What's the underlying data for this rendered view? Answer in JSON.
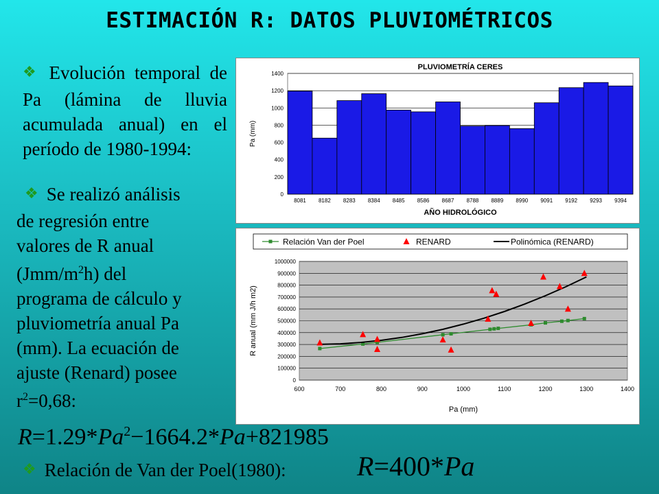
{
  "title": "ESTIMACIÓN R: DATOS PLUVIOMÉTRICOS",
  "bullet1": {
    "text": "Evolución temporal de Pa (lámina de lluvia acumulada anual) en el período de 1980-1994:"
  },
  "bullet2": {
    "line1": "Se realizó análisis",
    "line2": "de regresión entre",
    "line3": "valores de R anual",
    "line4a": "(Jmm/m",
    "line4sup": "2",
    "line4b": "h)  del",
    "line5": "programa de cálculo y",
    "line6": "pluviometría anual Pa",
    "line7": "(mm).  La ecuación de",
    "line8": "ajuste (Renard) posee",
    "line9a": "r",
    "line9sup": "2",
    "line9b": "=0,68:"
  },
  "equation_renard": {
    "lhs": "R",
    "eq": "=",
    "c1": "1.29",
    "op1": "*",
    "v1": "Pa",
    "exp": "2",
    "minus": "−",
    "c2": "1664.2",
    "op2": "*",
    "v2": "Pa",
    "plus": "+",
    "c3": "821985"
  },
  "bullet3": {
    "text": "Relación de Van der Poel(1980):"
  },
  "equation_vdp": {
    "lhs": "R",
    "eq": "=",
    "c": "400",
    "op": "*",
    "v": "Pa"
  },
  "colors": {
    "bar": "#1a1ae6",
    "vdp": "#2e8b2e",
    "renard": "#ff0000",
    "poly": "#000000",
    "plot_bg": "#c0c0c0",
    "diamond": "#1f9a1f"
  },
  "chart_data": [
    {
      "type": "bar",
      "title": "PLUVIOMETRÍA CERES",
      "xlabel": "AÑO HIDROLÓGICO",
      "ylabel": "Pa (mm)",
      "ylim": [
        0,
        1400
      ],
      "yticks": [
        0,
        200,
        400,
        600,
        800,
        1000,
        1200,
        1400
      ],
      "grid": true,
      "categories": [
        "8081",
        "8182",
        "8283",
        "8384",
        "8485",
        "8586",
        "8687",
        "8788",
        "8889",
        "8990",
        "9091",
        "9192",
        "9293",
        "9394"
      ],
      "values": [
        1195,
        650,
        1085,
        1165,
        975,
        955,
        1070,
        790,
        795,
        760,
        1060,
        1235,
        1295,
        1255
      ]
    },
    {
      "type": "scatter",
      "xlabel": "Pa (mm)",
      "ylabel": "R anual (mm J/h m2)",
      "xlim": [
        600,
        1400
      ],
      "ylim": [
        0,
        1000000
      ],
      "xticks": [
        600,
        700,
        800,
        900,
        1000,
        1100,
        1200,
        1300,
        1400
      ],
      "yticks": [
        0,
        100000,
        200000,
        300000,
        400000,
        500000,
        600000,
        700000,
        800000,
        900000,
        1000000
      ],
      "grid": true,
      "legend": "top",
      "series": [
        {
          "name": "Relación Van der Poel",
          "marker": "square",
          "x": [
            650,
            755,
            790,
            950,
            970,
            1065,
            1075,
            1085,
            1165,
            1200,
            1240,
            1255,
            1295
          ],
          "y": [
            266000,
            304000,
            318000,
            382000,
            390000,
            428000,
            432000,
            436000,
            466000,
            482000,
            496000,
            502000,
            518000
          ]
        },
        {
          "name": "RENARD",
          "marker": "triangle",
          "x": [
            650,
            755,
            790,
            790,
            950,
            970,
            1060,
            1070,
            1080,
            1165,
            1195,
            1235,
            1255,
            1295
          ],
          "y": [
            315000,
            385000,
            345000,
            260000,
            340000,
            255000,
            515000,
            755000,
            725000,
            480000,
            870000,
            790000,
            600000,
            900000
          ]
        },
        {
          "name": "Polinómica (RENARD)",
          "marker": "line",
          "x": [
            650,
            700,
            750,
            800,
            850,
            900,
            950,
            1000,
            1050,
            1100,
            1150,
            1200,
            1250,
            1300
          ],
          "y": [
            300985,
            305985,
            317435,
            335335,
            359685,
            390485,
            427735,
            471435,
            521585,
            578185,
            641235,
            710735,
            786685,
            869085
          ]
        }
      ]
    }
  ]
}
